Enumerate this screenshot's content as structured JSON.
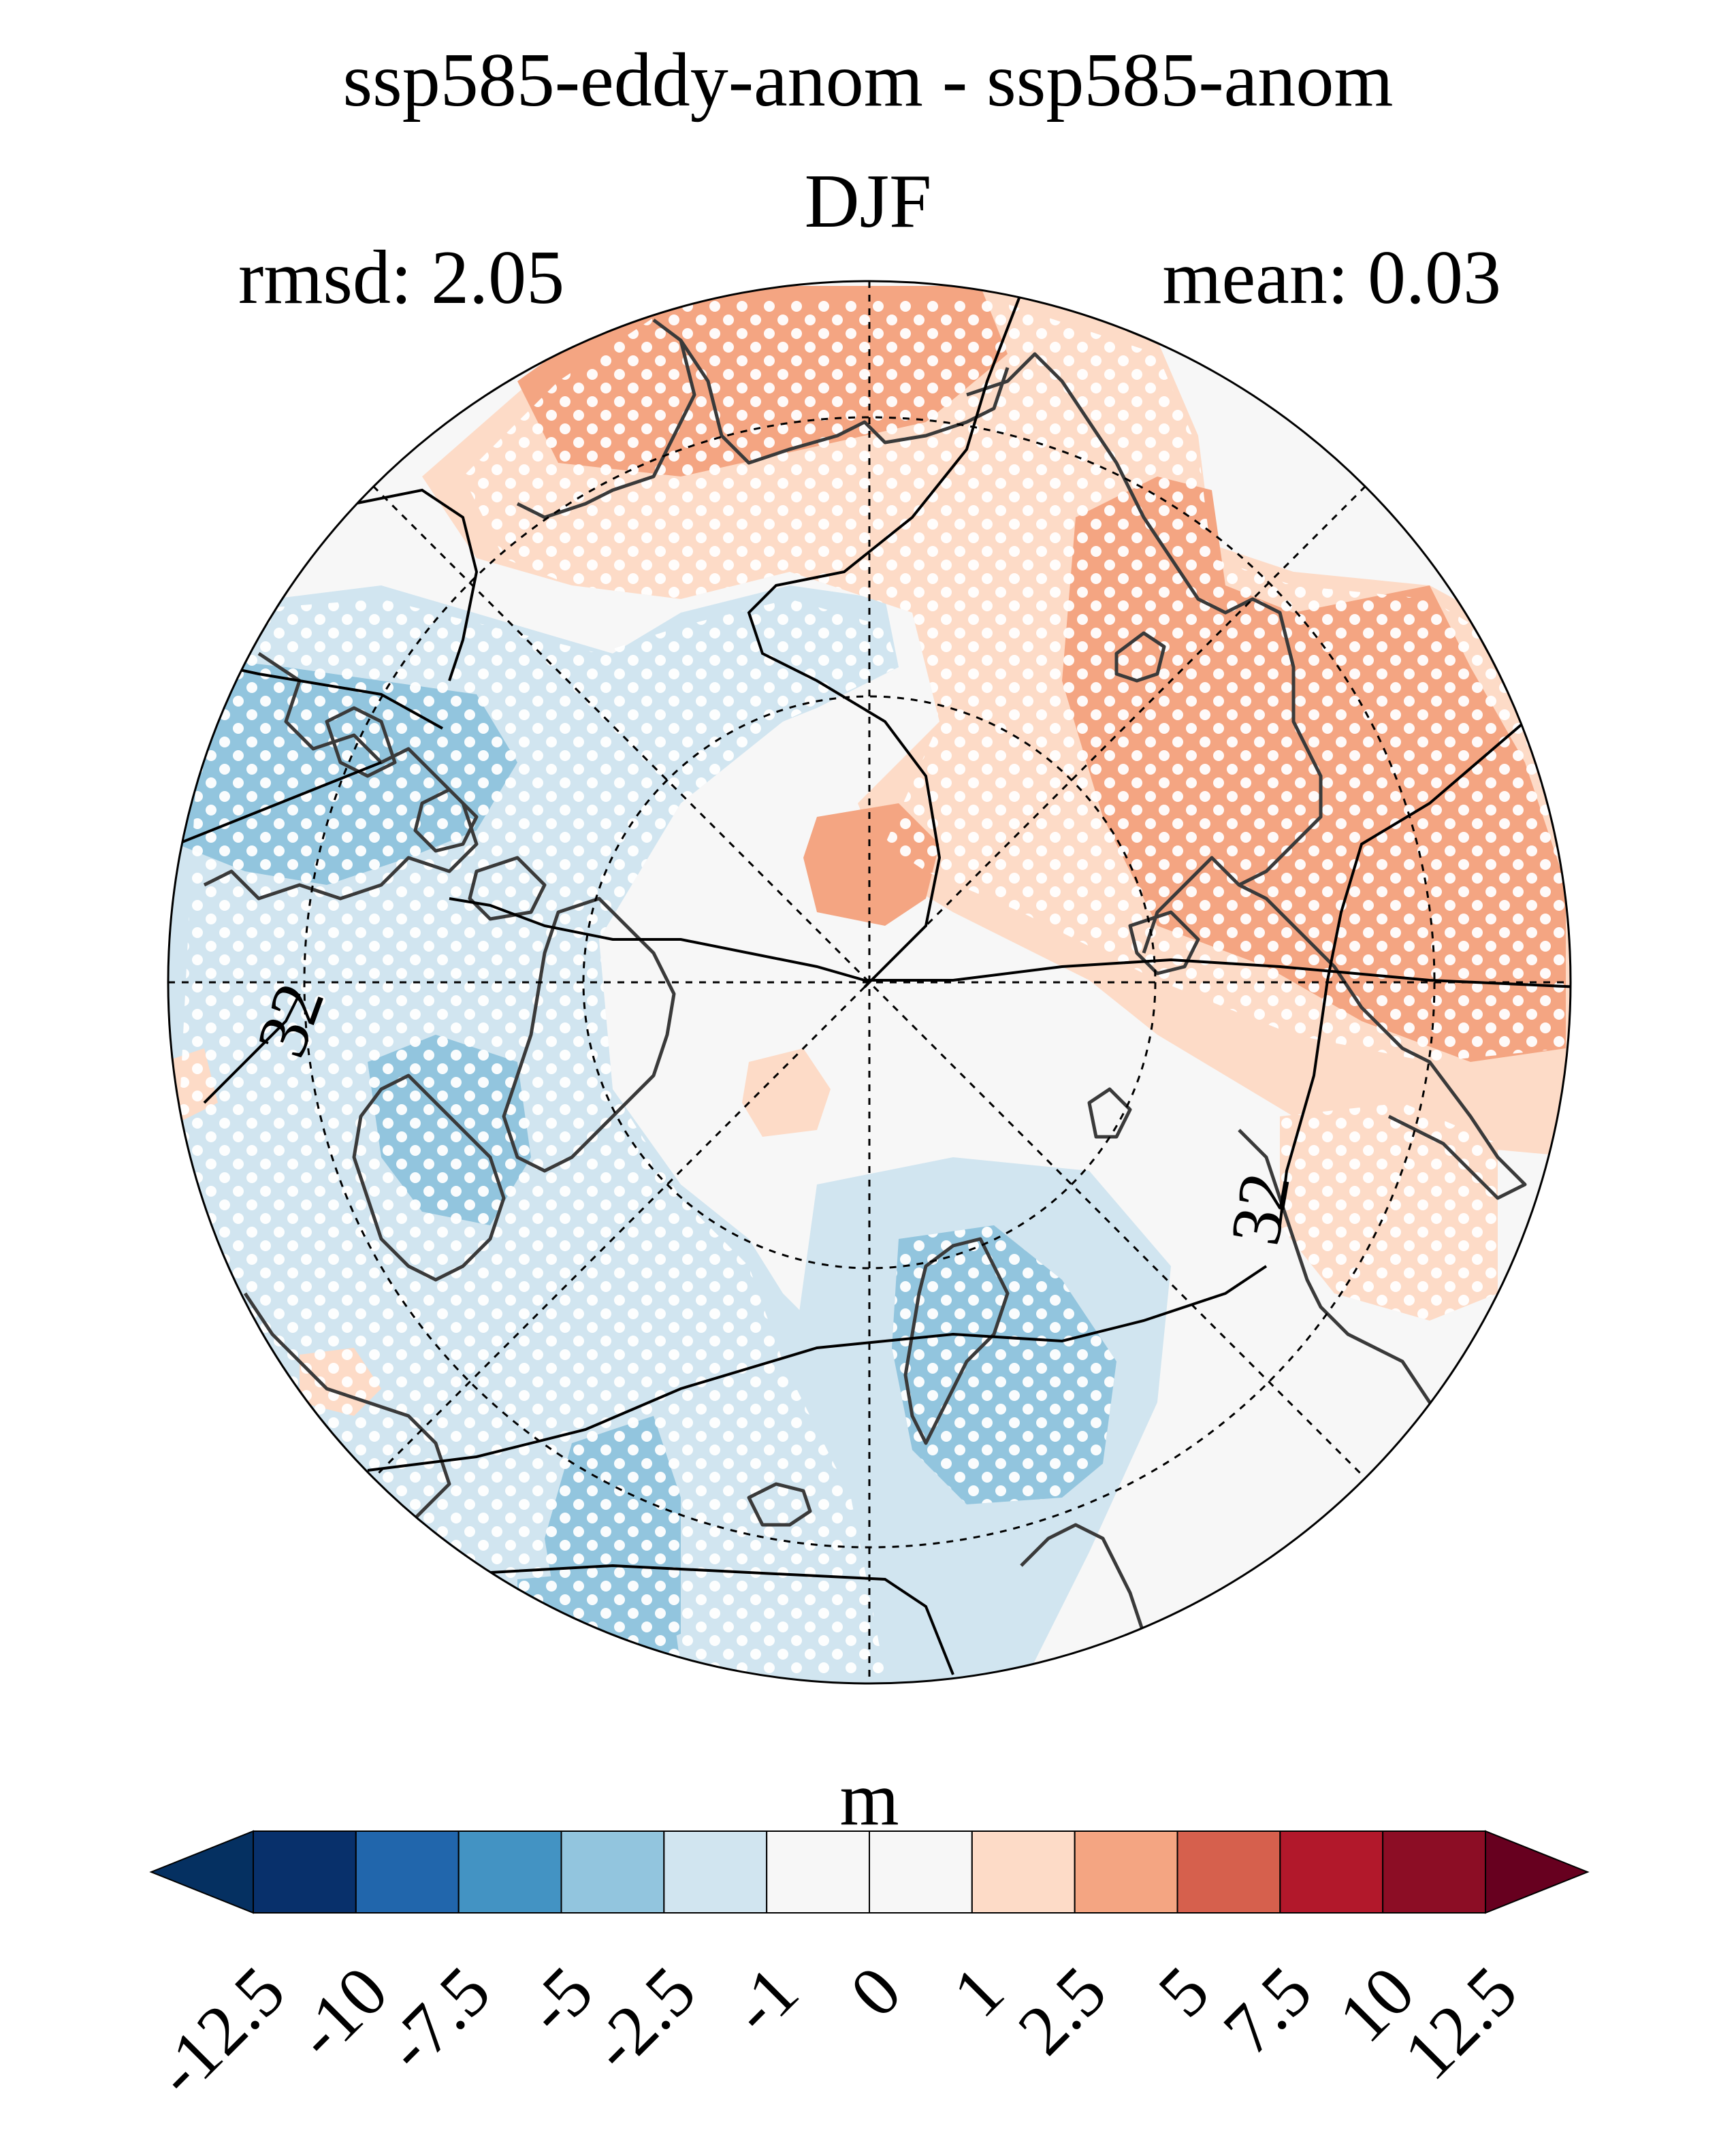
{
  "title": "ssp585-eddy-anom - ssp585-anom",
  "season": "DJF",
  "rmsd_label": "rmsd: 2.05",
  "mean_label": "mean: 0.03",
  "colorbar": {
    "unit": "m",
    "ticks": [
      "-12.5",
      "-10",
      "-7.5",
      "-5",
      "-2.5",
      "-1",
      "0",
      "1",
      "2.5",
      "5",
      "7.5",
      "10",
      "12.5"
    ],
    "colors": [
      "#053061",
      "#08306b",
      "#2166ac",
      "#4393c3",
      "#92c5de",
      "#d1e5f0",
      "#f7f7f7",
      "#f7f7f7",
      "#fddbc7",
      "#f4a582",
      "#d6604d",
      "#b2182b",
      "#8c0d25",
      "#67001f"
    ]
  },
  "map": {
    "projection": "north-polar-stereographic",
    "contour_label": "32",
    "stippling": "significance"
  }
}
